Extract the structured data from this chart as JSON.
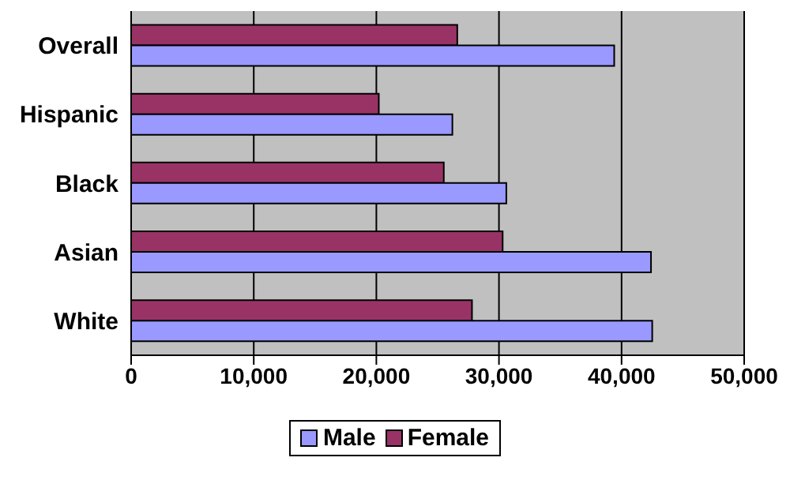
{
  "chart_data": {
    "type": "bar",
    "orientation": "horizontal",
    "categories": [
      "Overall",
      "Hispanic",
      "Black",
      "Asian",
      "White"
    ],
    "series": [
      {
        "name": "Male",
        "color": "#9999ff",
        "values": [
          39400,
          26200,
          30600,
          42400,
          42500
        ]
      },
      {
        "name": "Female",
        "color": "#993366",
        "values": [
          26600,
          20200,
          25500,
          30300,
          27800
        ]
      }
    ],
    "xlim": [
      0,
      50000
    ],
    "xticks": [
      {
        "value": 0,
        "label": "0"
      },
      {
        "value": 10000,
        "label": "10,000"
      },
      {
        "value": 20000,
        "label": "20,000"
      },
      {
        "value": 30000,
        "label": "30,000"
      },
      {
        "value": 40000,
        "label": "40,000"
      },
      {
        "value": 50000,
        "label": "50,000"
      }
    ],
    "grid": "x",
    "legend": "bottom"
  }
}
